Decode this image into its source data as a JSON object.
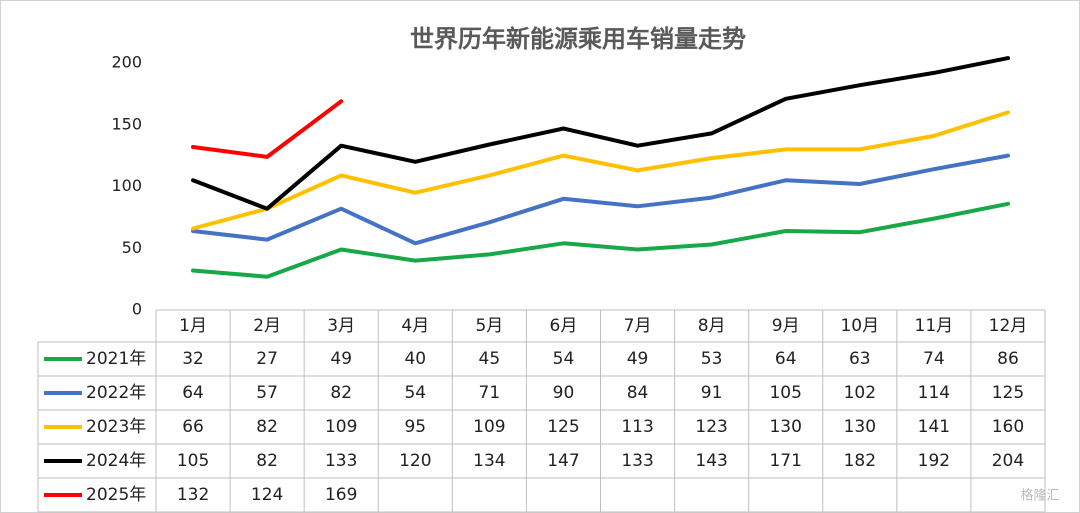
{
  "chart_data": {
    "type": "line",
    "title": "世界历年新能源乘用车销量走势",
    "categories": [
      "1月",
      "2月",
      "3月",
      "4月",
      "5月",
      "6月",
      "7月",
      "8月",
      "9月",
      "10月",
      "11月",
      "12月"
    ],
    "series": [
      {
        "name": "2021年",
        "color": "#18a848",
        "values": [
          32,
          27,
          49,
          40,
          45,
          54,
          49,
          53,
          64,
          63,
          74,
          86
        ]
      },
      {
        "name": "2022年",
        "color": "#4472c4",
        "values": [
          64,
          57,
          82,
          54,
          71,
          90,
          84,
          91,
          105,
          102,
          114,
          125
        ]
      },
      {
        "name": "2023年",
        "color": "#ffc000",
        "values": [
          66,
          82,
          109,
          95,
          109,
          125,
          113,
          123,
          130,
          130,
          141,
          160
        ]
      },
      {
        "name": "2024年",
        "color": "#000000",
        "values": [
          105,
          82,
          133,
          120,
          134,
          147,
          133,
          143,
          171,
          182,
          192,
          204
        ]
      },
      {
        "name": "2025年",
        "color": "#ff0000",
        "values": [
          132,
          124,
          169,
          null,
          null,
          null,
          null,
          null,
          null,
          null,
          null,
          null
        ]
      }
    ],
    "ylim": [
      0,
      200
    ],
    "yticks": [
      0,
      50,
      100,
      150,
      200
    ],
    "grid": false,
    "watermark": "格隆汇"
  }
}
